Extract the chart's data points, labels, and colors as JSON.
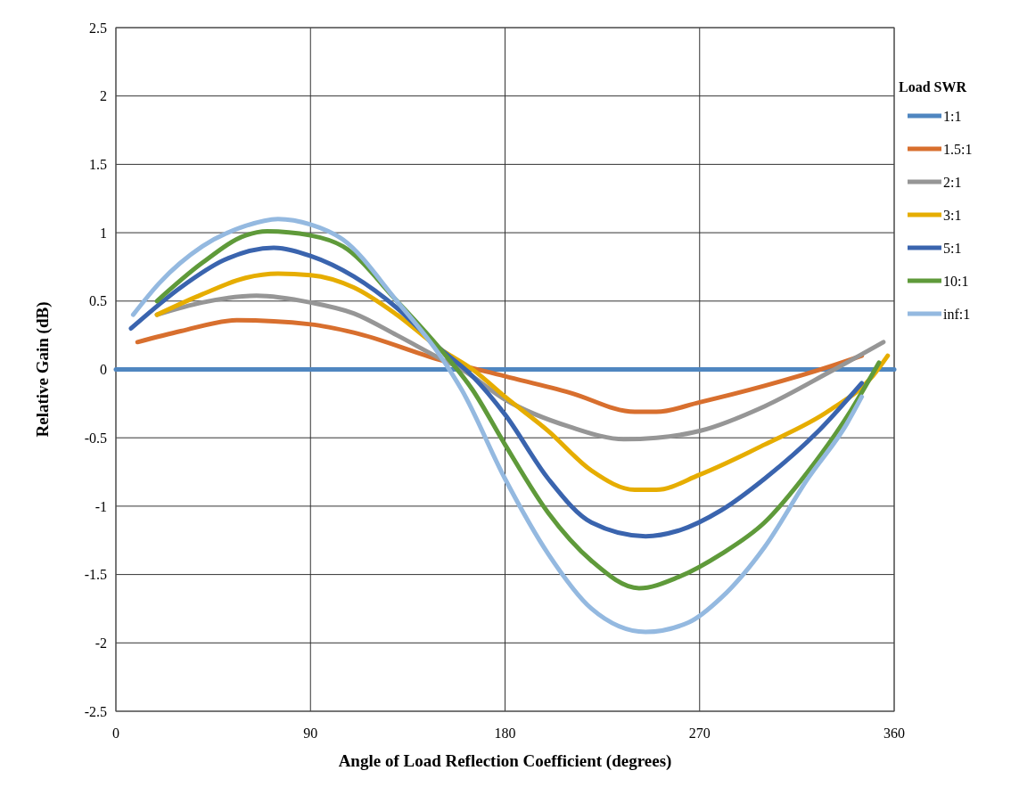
{
  "chart_data": {
    "type": "line",
    "xlabel": "Angle of Load Reflection Coefficient (degrees)",
    "ylabel": "Relative Gain (dB)",
    "legend_title": "Load SWR",
    "xlim": [
      0,
      360
    ],
    "xticks": [
      0,
      90,
      180,
      270,
      360
    ],
    "ylim": [
      -2.5,
      2.5
    ],
    "yticks": [
      -2.5,
      -2,
      -1.5,
      -1,
      -0.5,
      0,
      0.5,
      1,
      1.5,
      2,
      2.5
    ],
    "grid": true,
    "legend": "right",
    "marker": "none",
    "line_style": "solid",
    "series": [
      {
        "name": "1:1",
        "color": "#4f86c0",
        "x": [
          0,
          360
        ],
        "values": [
          0,
          0
        ]
      },
      {
        "name": "1.5:1",
        "color": "#d86f2e",
        "x": [
          10,
          30,
          56,
          90,
          110,
          150,
          180,
          210,
          240,
          250,
          270,
          300,
          330,
          345
        ],
        "values": [
          0.2,
          0.28,
          0.36,
          0.33,
          0.27,
          0.07,
          -0.05,
          -0.17,
          -0.31,
          -0.31,
          -0.24,
          -0.12,
          0.02,
          0.1
        ]
      },
      {
        "name": "2:1",
        "color": "#969696",
        "x": [
          19,
          40,
          65,
          90,
          110,
          130,
          150,
          160,
          180,
          210,
          235,
          250,
          270,
          300,
          330,
          355
        ],
        "values": [
          0.4,
          0.49,
          0.54,
          0.49,
          0.41,
          0.25,
          0.08,
          0,
          -0.22,
          -0.42,
          -0.51,
          -0.5,
          -0.45,
          -0.27,
          -0.02,
          0.2
        ]
      },
      {
        "name": "3:1",
        "color": "#e6ad00",
        "x": [
          19,
          40,
          60,
          75,
          90,
          110,
          130,
          150,
          165,
          180,
          200,
          220,
          240,
          250,
          270,
          300,
          330,
          350,
          357
        ],
        "values": [
          0.4,
          0.55,
          0.67,
          0.7,
          0.69,
          0.6,
          0.4,
          0.15,
          0,
          -0.2,
          -0.45,
          -0.74,
          -0.88,
          -0.88,
          -0.77,
          -0.55,
          -0.3,
          -0.05,
          0.1
        ]
      },
      {
        "name": "5:1",
        "color": "#3a64ae",
        "x": [
          7,
          30,
          50,
          73,
          90,
          110,
          130,
          150,
          165,
          180,
          200,
          220,
          245,
          260,
          280,
          300,
          325,
          345
        ],
        "values": [
          0.3,
          0.6,
          0.8,
          0.89,
          0.83,
          0.68,
          0.45,
          0.15,
          -0.05,
          -0.33,
          -0.8,
          -1.12,
          -1.22,
          -1.18,
          -1.03,
          -0.8,
          -0.45,
          -0.1
        ]
      },
      {
        "name": "10:1",
        "color": "#5f9a3a",
        "x": [
          19,
          40,
          60,
          70,
          90,
          105,
          130,
          150,
          165,
          180,
          200,
          220,
          242,
          260,
          280,
          300,
          320,
          340,
          353
        ],
        "values": [
          0.5,
          0.78,
          0.98,
          1.01,
          0.98,
          0.9,
          0.5,
          0.15,
          -0.15,
          -0.55,
          -1.05,
          -1.4,
          -1.6,
          -1.52,
          -1.35,
          -1.12,
          -0.75,
          -0.3,
          0.05
        ]
      },
      {
        "name": "inf:1",
        "color": "#94b9e0",
        "x": [
          8,
          20,
          40,
          60,
          75,
          90,
          105,
          130,
          150,
          160,
          180,
          200,
          220,
          245,
          265,
          280,
          300,
          320,
          338,
          345
        ],
        "values": [
          0.4,
          0.63,
          0.9,
          1.05,
          1.1,
          1.06,
          0.95,
          0.5,
          0.1,
          -0.15,
          -0.8,
          -1.35,
          -1.75,
          -1.92,
          -1.85,
          -1.67,
          -1.3,
          -0.8,
          -0.4,
          -0.2
        ]
      }
    ]
  }
}
